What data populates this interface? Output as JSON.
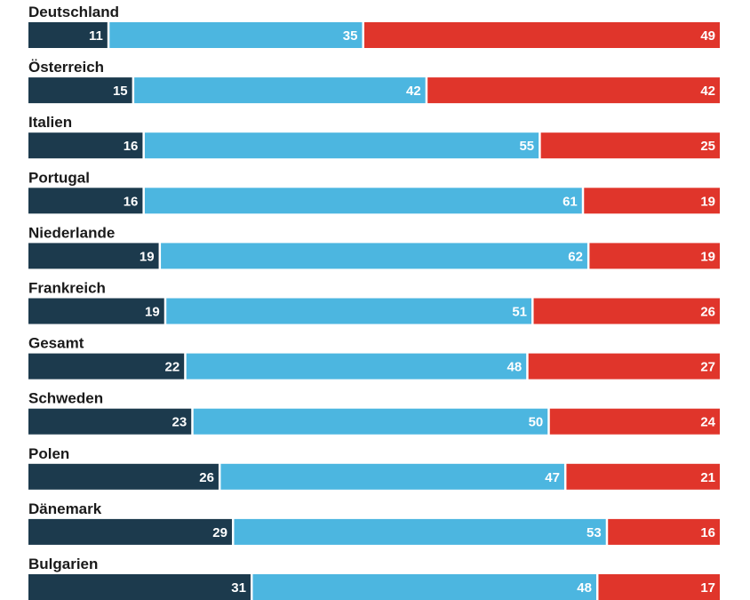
{
  "chart_data": {
    "type": "bar",
    "orientation": "horizontal",
    "stacked": true,
    "normalized": true,
    "title": "",
    "xlabel": "",
    "ylabel": "",
    "xlim": [
      0,
      100
    ],
    "grid": false,
    "legend": "none",
    "categories": [
      "Deutschland",
      "Österreich",
      "Italien",
      "Portugal",
      "Niederlande",
      "Frankreich",
      "Gesamt",
      "Schweden",
      "Polen",
      "Dänemark",
      "Bulgarien"
    ],
    "series": [
      {
        "color": "#1c3a4d",
        "values": [
          11,
          15,
          16,
          16,
          19,
          19,
          22,
          23,
          26,
          29,
          31
        ]
      },
      {
        "color": "#4cb6e0",
        "values": [
          35,
          42,
          55,
          61,
          62,
          51,
          48,
          50,
          47,
          53,
          48
        ]
      },
      {
        "color": "#e0352b",
        "values": [
          49,
          42,
          25,
          19,
          19,
          26,
          27,
          24,
          21,
          16,
          17
        ]
      }
    ]
  }
}
